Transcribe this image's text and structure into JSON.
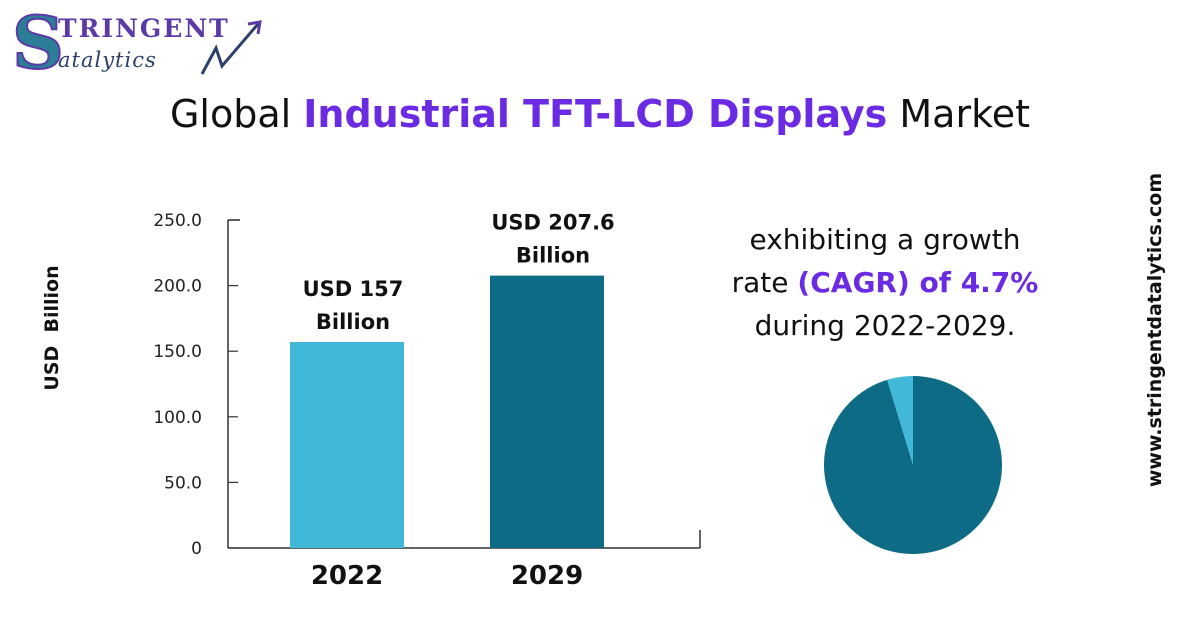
{
  "logo": {
    "initial": "S",
    "word1": "TRINGENT",
    "word2": "atalytics"
  },
  "title": {
    "prefix": "Global ",
    "highlight": "Industrial TFT-LCD Displays",
    "suffix": " Market"
  },
  "chart_data": {
    "type": "bar",
    "categories": [
      "2022",
      "2029"
    ],
    "values": [
      157,
      207.6
    ],
    "data_labels": [
      [
        "USD 157",
        "Billion"
      ],
      [
        "USD 207.6",
        "Billion"
      ]
    ],
    "colors": [
      "#42b8d8",
      "#0d6b86"
    ],
    "title": "",
    "xlabel": "",
    "ylabel": "USD  Billion",
    "ylim": [
      0,
      250
    ],
    "yticks": [
      0,
      50,
      100,
      150,
      200,
      250
    ],
    "ytick_labels": [
      "0",
      "50.0",
      "100.0",
      "150.0",
      "200.0",
      "250.0"
    ],
    "grid": false
  },
  "cagr": {
    "line1": "exhibiting a growth",
    "line2_prefix": "rate ",
    "line2_highlight": "(CAGR) of 4.7%",
    "line3": "during 2022-2029."
  },
  "pie": {
    "slices": [
      {
        "value": 4.7,
        "color": "#42b8d8"
      },
      {
        "value": 95.3,
        "color": "#0d6b86"
      }
    ]
  },
  "website": "www.stringentdatalytics.com"
}
